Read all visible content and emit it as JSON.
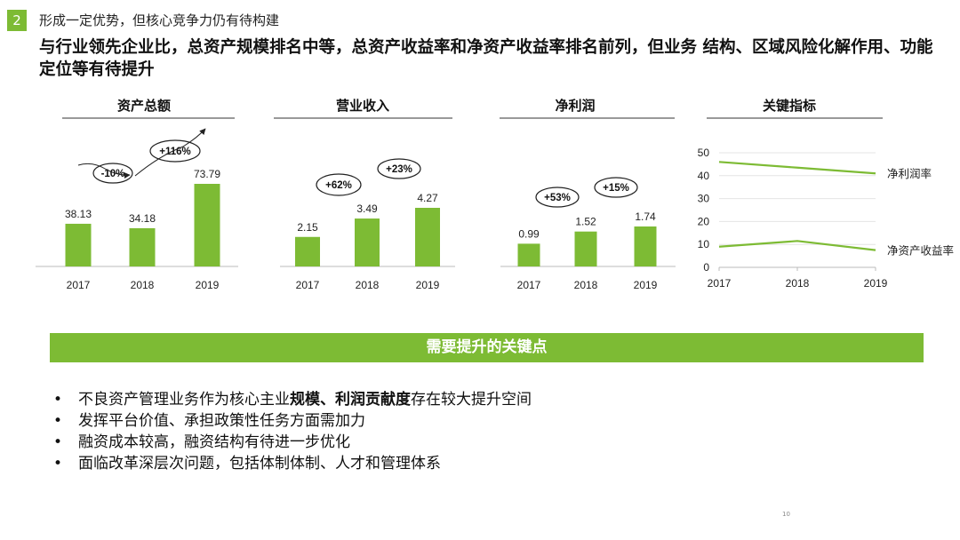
{
  "header": {
    "section_number": "2",
    "section_title": "形成一定优势，但核心竞争力仍有待构建",
    "headline": "与行业领先企业比，总资产规模排名中等，总资产收益率和净资产收益率排名前列，但业务 结构、区域风险化解作用、功能定位等有待提升"
  },
  "chart_data": [
    {
      "type": "bar",
      "title": "资产总额",
      "categories": [
        "2017",
        "2018",
        "2019"
      ],
      "values": [
        38.13,
        34.18,
        73.79
      ],
      "value_labels": [
        "38.13",
        "34.18",
        "73.79"
      ],
      "annotations": [
        "-10%",
        "+116%"
      ],
      "color": "#7dbb34"
    },
    {
      "type": "bar",
      "title": "营业收入",
      "categories": [
        "2017",
        "2018",
        "2019"
      ],
      "values": [
        2.15,
        3.49,
        4.27
      ],
      "value_labels": [
        "2.15",
        "3.49",
        "4.27"
      ],
      "annotations": [
        "+62%",
        "+23%"
      ],
      "color": "#7dbb34"
    },
    {
      "type": "bar",
      "title": "净利润",
      "categories": [
        "2017",
        "2018",
        "2019"
      ],
      "values": [
        0.99,
        1.52,
        1.74
      ],
      "value_labels": [
        "0.99",
        "1.52",
        "1.74"
      ],
      "annotations": [
        "+53%",
        "+15%"
      ],
      "color": "#7dbb34"
    },
    {
      "type": "line",
      "title": "关键指标",
      "x": [
        "2017",
        "2018",
        "2019"
      ],
      "ylim": [
        0,
        50
      ],
      "yticks": [
        "0",
        "10",
        "20",
        "30",
        "40",
        "50"
      ],
      "series": [
        {
          "name": "净利润率",
          "values": [
            46,
            43.5,
            41
          ]
        },
        {
          "name": "净资产收益率",
          "values": [
            9,
            11.5,
            7.5
          ]
        }
      ],
      "color": "#7dbb34"
    }
  ],
  "banner": {
    "label": "需要提升的关键点"
  },
  "bullets": [
    {
      "before": "不良资产管理业务作为核心主业",
      "bold": "规模、利润贡献度",
      "after": "存在较大提升空间"
    },
    {
      "before": "发挥平台价值、承担政策性任务方面需加力",
      "bold": "",
      "after": ""
    },
    {
      "before": " 融资成本较高，融资结构有待进一步优化",
      "bold": "",
      "after": ""
    },
    {
      "before": "面临改革深层次问题，包括体制体制、人才和管理体系",
      "bold": "",
      "after": ""
    }
  ],
  "bullet_symbol": "•",
  "page_number": "10"
}
